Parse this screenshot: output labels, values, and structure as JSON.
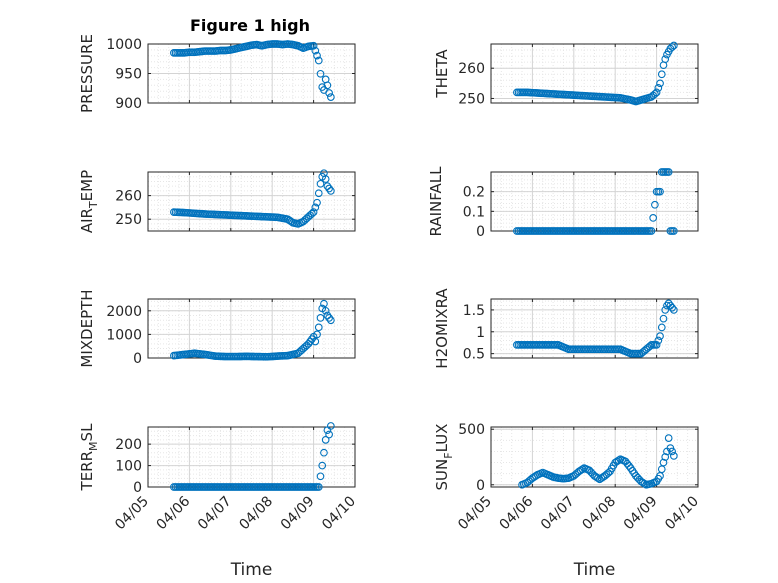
{
  "figure_title": "Figure 1 high",
  "colors": {
    "marker": "#0072BD",
    "axis": "#262626",
    "grid_major": "#d4d4d4",
    "grid_minor": "#e6e6e6"
  },
  "chart_data": [
    {
      "type": "scatter",
      "title": "Figure 1 high",
      "ylabel": "PRESSURE",
      "ylabel_parts": [
        "PRESSURE"
      ],
      "xlabel": "",
      "xlim": [
        "04/05",
        "04/10"
      ],
      "ylim": [
        900,
        1000
      ],
      "yticks": [
        900,
        950,
        1000
      ],
      "xtick_labels_visible": false,
      "grid": true,
      "points": [
        [
          "04/05 15:00",
          985
        ],
        [
          "04/05 18:00",
          985
        ],
        [
          "04/05 21:00",
          985
        ],
        [
          "04/06 00:00",
          986
        ],
        [
          "04/06 03:00",
          986
        ],
        [
          "04/06 06:00",
          987
        ],
        [
          "04/06 09:00",
          988
        ],
        [
          "04/06 12:00",
          988
        ],
        [
          "04/06 15:00",
          988
        ],
        [
          "04/06 18:00",
          989
        ],
        [
          "04/06 21:00",
          989
        ],
        [
          "04/07 00:00",
          990
        ],
        [
          "04/07 03:00",
          992
        ],
        [
          "04/07 06:00",
          994
        ],
        [
          "04/07 09:00",
          996
        ],
        [
          "04/07 12:00",
          998
        ],
        [
          "04/07 15:00",
          999
        ],
        [
          "04/07 18:00",
          997
        ],
        [
          "04/07 21:00",
          999
        ],
        [
          "04/08 00:00",
          1000
        ],
        [
          "04/08 03:00",
          1000
        ],
        [
          "04/08 06:00",
          999
        ],
        [
          "04/08 09:00",
          1000
        ],
        [
          "04/08 12:00",
          999
        ],
        [
          "04/08 15:00",
          997
        ],
        [
          "04/08 18:00",
          993
        ],
        [
          "04/08 21:00",
          996
        ],
        [
          "04/09 00:00",
          997
        ],
        [
          "04/09 03:00",
          972
        ],
        [
          "04/09 05:00",
          927
        ],
        [
          "04/09 06:00",
          922
        ],
        [
          "04/09 07:00",
          940
        ],
        [
          "04/09 08:00",
          930
        ],
        [
          "04/09 09:00",
          917
        ],
        [
          "04/09 10:00",
          910
        ]
      ]
    },
    {
      "type": "scatter",
      "ylabel": "THETA",
      "ylabel_parts": [
        "THETA"
      ],
      "xlabel": "",
      "xlim": [
        "04/05",
        "04/10"
      ],
      "ylim": [
        248.5,
        268
      ],
      "yticks": [
        250,
        260
      ],
      "xtick_labels_visible": false,
      "grid": true,
      "points": [
        [
          "04/05 15:00",
          252
        ],
        [
          "04/05 21:00",
          252
        ],
        [
          "04/06 03:00",
          251.8
        ],
        [
          "04/06 09:00",
          251.6
        ],
        [
          "04/06 15:00",
          251.4
        ],
        [
          "04/06 21:00",
          251.2
        ],
        [
          "04/07 03:00",
          251
        ],
        [
          "04/07 09:00",
          250.8
        ],
        [
          "04/07 15:00",
          250.6
        ],
        [
          "04/07 21:00",
          250.4
        ],
        [
          "04/08 03:00",
          250.2
        ],
        [
          "04/08 09:00",
          249.5
        ],
        [
          "04/08 12:00",
          249
        ],
        [
          "04/08 15:00",
          249.5
        ],
        [
          "04/08 18:00",
          250
        ],
        [
          "04/08 21:00",
          250.5
        ],
        [
          "04/09 00:00",
          252
        ],
        [
          "04/09 02:00",
          255
        ],
        [
          "04/09 03:00",
          258
        ],
        [
          "04/09 04:00",
          261
        ],
        [
          "04/09 05:00",
          263
        ],
        [
          "04/09 06:00",
          264.5
        ],
        [
          "04/09 07:00",
          265.5
        ],
        [
          "04/09 08:00",
          266.5
        ],
        [
          "04/09 09:00",
          267
        ],
        [
          "04/09 10:00",
          267.5
        ]
      ]
    },
    {
      "type": "scatter",
      "ylabel": "AIR_TEMP",
      "ylabel_parts": [
        "AIR",
        "T",
        "EMP"
      ],
      "xlabel": "",
      "xlim": [
        "04/05",
        "04/10"
      ],
      "ylim": [
        245,
        270
      ],
      "yticks": [
        250,
        260
      ],
      "xtick_labels_visible": false,
      "grid": true,
      "points": [
        [
          "04/05 15:00",
          253
        ],
        [
          "04/05 21:00",
          252.8
        ],
        [
          "04/06 03:00",
          252.5
        ],
        [
          "04/06 09:00",
          252.2
        ],
        [
          "04/06 15:00",
          252
        ],
        [
          "04/06 21:00",
          251.8
        ],
        [
          "04/07 03:00",
          251.6
        ],
        [
          "04/07 09:00",
          251.4
        ],
        [
          "04/07 15:00",
          251.2
        ],
        [
          "04/07 21:00",
          251
        ],
        [
          "04/08 03:00",
          250.8
        ],
        [
          "04/08 09:00",
          250
        ],
        [
          "04/08 12:00",
          248.5
        ],
        [
          "04/08 15:00",
          248
        ],
        [
          "04/08 18:00",
          249
        ],
        [
          "04/08 21:00",
          251
        ],
        [
          "04/09 00:00",
          253
        ],
        [
          "04/09 02:00",
          257
        ],
        [
          "04/09 03:00",
          261
        ],
        [
          "04/09 04:00",
          265
        ],
        [
          "04/09 05:00",
          268
        ],
        [
          "04/09 06:00",
          269.5
        ],
        [
          "04/09 07:00",
          267
        ],
        [
          "04/09 08:00",
          264
        ],
        [
          "04/09 09:00",
          263
        ],
        [
          "04/09 10:00",
          262
        ]
      ]
    },
    {
      "type": "scatter",
      "ylabel": "RAINFALL",
      "ylabel_parts": [
        "RAINFALL"
      ],
      "xlabel": "",
      "xlim": [
        "04/05",
        "04/10"
      ],
      "ylim": [
        0,
        0.3
      ],
      "yticks": [
        0,
        0.1,
        0.2
      ],
      "ytick_labels": [
        "0",
        "0.1",
        "0.2"
      ],
      "xtick_labels_visible": false,
      "grid": true,
      "points": [
        [
          "04/05 15:00",
          0
        ],
        [
          "04/05 21:00",
          0
        ],
        [
          "04/06 03:00",
          0
        ],
        [
          "04/06 09:00",
          0
        ],
        [
          "04/06 15:00",
          0
        ],
        [
          "04/06 21:00",
          0
        ],
        [
          "04/07 03:00",
          0
        ],
        [
          "04/07 09:00",
          0
        ],
        [
          "04/07 15:00",
          0
        ],
        [
          "04/07 21:00",
          0
        ],
        [
          "04/08 03:00",
          0
        ],
        [
          "04/08 09:00",
          0
        ],
        [
          "04/08 15:00",
          0
        ],
        [
          "04/08 21:00",
          0
        ],
        [
          "04/09 00:00",
          0.2
        ],
        [
          "04/09 02:00",
          0.2
        ],
        [
          "04/09 03:00",
          0.3
        ],
        [
          "04/09 05:00",
          0.3
        ],
        [
          "04/09 07:00",
          0.3
        ],
        [
          "04/09 08:00",
          0
        ],
        [
          "04/09 10:00",
          0
        ]
      ]
    },
    {
      "type": "scatter",
      "ylabel": "MIXDEPTH",
      "ylabel_parts": [
        "MIXDEPTH"
      ],
      "xlabel": "",
      "xlim": [
        "04/05",
        "04/10"
      ],
      "ylim": [
        0,
        2500
      ],
      "yticks": [
        0,
        1000,
        2000
      ],
      "xtick_labels_visible": false,
      "grid": true,
      "points": [
        [
          "04/05 15:00",
          100
        ],
        [
          "04/05 21:00",
          150
        ],
        [
          "04/06 03:00",
          200
        ],
        [
          "04/06 09:00",
          150
        ],
        [
          "04/06 15:00",
          80
        ],
        [
          "04/06 21:00",
          60
        ],
        [
          "04/07 03:00",
          60
        ],
        [
          "04/07 09:00",
          70
        ],
        [
          "04/07 15:00",
          60
        ],
        [
          "04/07 21:00",
          50
        ],
        [
          "04/08 03:00",
          80
        ],
        [
          "04/08 09:00",
          100
        ],
        [
          "04/08 15:00",
          200
        ],
        [
          "04/08 18:00",
          400
        ],
        [
          "04/08 21:00",
          600
        ],
        [
          "04/09 00:00",
          900
        ],
        [
          "04/09 01:00",
          700
        ],
        [
          "04/09 02:00",
          1000
        ],
        [
          "04/09 03:00",
          1300
        ],
        [
          "04/09 04:00",
          1700
        ],
        [
          "04/09 05:00",
          2100
        ],
        [
          "04/09 06:00",
          2300
        ],
        [
          "04/09 07:00",
          2000
        ],
        [
          "04/09 08:00",
          1800
        ],
        [
          "04/09 09:00",
          1700
        ],
        [
          "04/09 10:00",
          1600
        ]
      ]
    },
    {
      "type": "scatter",
      "ylabel": "H2OMIXRA",
      "ylabel_parts": [
        "H2OMIXRA"
      ],
      "xlabel": "",
      "xlim": [
        "04/05",
        "04/10"
      ],
      "ylim": [
        0.4,
        1.75
      ],
      "yticks": [
        0.5,
        1,
        1.5
      ],
      "ytick_labels": [
        "0.5",
        "1",
        "1.5"
      ],
      "xtick_labels_visible": false,
      "grid": true,
      "points": [
        [
          "04/05 15:00",
          0.7
        ],
        [
          "04/05 21:00",
          0.7
        ],
        [
          "04/06 03:00",
          0.7
        ],
        [
          "04/06 09:00",
          0.7
        ],
        [
          "04/06 15:00",
          0.7
        ],
        [
          "04/06 21:00",
          0.6
        ],
        [
          "04/07 03:00",
          0.6
        ],
        [
          "04/07 09:00",
          0.6
        ],
        [
          "04/07 15:00",
          0.6
        ],
        [
          "04/07 21:00",
          0.6
        ],
        [
          "04/08 03:00",
          0.6
        ],
        [
          "04/08 09:00",
          0.5
        ],
        [
          "04/08 15:00",
          0.5
        ],
        [
          "04/08 18:00",
          0.6
        ],
        [
          "04/08 21:00",
          0.7
        ],
        [
          "04/09 00:00",
          0.7
        ],
        [
          "04/09 02:00",
          0.9
        ],
        [
          "04/09 03:00",
          1.1
        ],
        [
          "04/09 04:00",
          1.3
        ],
        [
          "04/09 05:00",
          1.5
        ],
        [
          "04/09 06:00",
          1.6
        ],
        [
          "04/09 07:00",
          1.65
        ],
        [
          "04/09 08:00",
          1.6
        ],
        [
          "04/09 09:00",
          1.55
        ],
        [
          "04/09 10:00",
          1.5
        ]
      ]
    },
    {
      "type": "scatter",
      "ylabel": "TERR_MSL",
      "ylabel_parts": [
        "TERR",
        "M",
        "SL"
      ],
      "xlabel": "Time",
      "xlim": [
        "04/05",
        "04/10"
      ],
      "ylim": [
        0,
        280
      ],
      "yticks": [
        0,
        100,
        200
      ],
      "xtick_labels": [
        "04/05",
        "04/06",
        "04/07",
        "04/08",
        "04/09",
        "04/10"
      ],
      "grid": true,
      "points": [
        [
          "04/05 15:00",
          0
        ],
        [
          "04/05 21:00",
          0
        ],
        [
          "04/06 03:00",
          0
        ],
        [
          "04/06 09:00",
          0
        ],
        [
          "04/06 15:00",
          0
        ],
        [
          "04/06 21:00",
          0
        ],
        [
          "04/07 03:00",
          0
        ],
        [
          "04/07 09:00",
          0
        ],
        [
          "04/07 15:00",
          0
        ],
        [
          "04/07 21:00",
          0
        ],
        [
          "04/08 03:00",
          0
        ],
        [
          "04/08 09:00",
          0
        ],
        [
          "04/08 15:00",
          0
        ],
        [
          "04/08 21:00",
          0
        ],
        [
          "04/09 00:00",
          0
        ],
        [
          "04/09 03:00",
          0
        ],
        [
          "04/09 05:00",
          100
        ],
        [
          "04/09 06:00",
          160
        ],
        [
          "04/09 07:00",
          220
        ],
        [
          "04/09 08:00",
          265
        ],
        [
          "04/09 09:00",
          245
        ],
        [
          "04/09 10:00",
          285
        ]
      ]
    },
    {
      "type": "scatter",
      "ylabel": "SUN_FLUX",
      "ylabel_parts": [
        "SUN",
        "F",
        "LUX"
      ],
      "xlabel": "Time",
      "xlim": [
        "04/05",
        "04/10"
      ],
      "ylim": [
        -20,
        520
      ],
      "yticks": [
        0,
        500
      ],
      "xtick_labels": [
        "04/05",
        "04/06",
        "04/07",
        "04/08",
        "04/09",
        "04/10"
      ],
      "grid": true,
      "points": [
        [
          "04/05 18:00",
          0
        ],
        [
          "04/05 21:00",
          20
        ],
        [
          "04/06 00:00",
          60
        ],
        [
          "04/06 03:00",
          90
        ],
        [
          "04/06 06:00",
          110
        ],
        [
          "04/06 09:00",
          90
        ],
        [
          "04/06 12:00",
          70
        ],
        [
          "04/06 15:00",
          60
        ],
        [
          "04/06 18:00",
          55
        ],
        [
          "04/06 21:00",
          60
        ],
        [
          "04/07 00:00",
          80
        ],
        [
          "04/07 03:00",
          120
        ],
        [
          "04/07 06:00",
          150
        ],
        [
          "04/07 09:00",
          130
        ],
        [
          "04/07 12:00",
          80
        ],
        [
          "04/07 15:00",
          50
        ],
        [
          "04/07 18:00",
          80
        ],
        [
          "04/07 21:00",
          120
        ],
        [
          "04/08 00:00",
          200
        ],
        [
          "04/08 03:00",
          230
        ],
        [
          "04/08 06:00",
          210
        ],
        [
          "04/08 09:00",
          150
        ],
        [
          "04/08 12:00",
          80
        ],
        [
          "04/08 15:00",
          30
        ],
        [
          "04/08 18:00",
          0
        ],
        [
          "04/08 21:00",
          10
        ],
        [
          "04/09 00:00",
          30
        ],
        [
          "04/09 02:00",
          80
        ],
        [
          "04/09 04:00",
          200
        ],
        [
          "04/09 06:00",
          300
        ],
        [
          "04/09 07:00",
          420
        ],
        [
          "04/09 08:00",
          330
        ],
        [
          "04/09 09:00",
          300
        ],
        [
          "04/09 10:00",
          260
        ]
      ]
    }
  ]
}
